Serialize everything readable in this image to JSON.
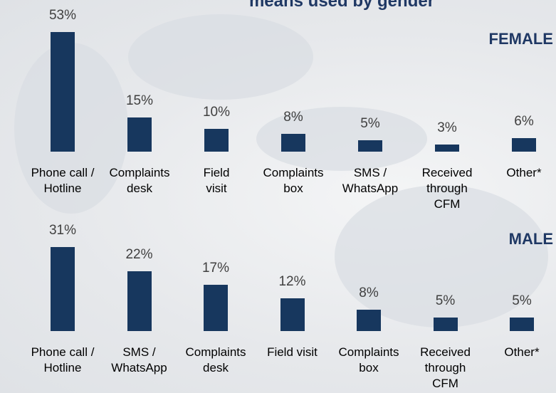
{
  "title": "means used by gender",
  "chart_data": [
    {
      "type": "bar",
      "title": "FEMALE",
      "color": "#17375e",
      "categories": [
        "Phone call /\nHotline",
        "Complaints\ndesk",
        "Field\nvisit",
        "Complaints\nbox",
        "SMS /\nWhatsApp",
        "Received\nthrough\nCFM",
        "Other*"
      ],
      "values": [
        53,
        15,
        10,
        8,
        5,
        3,
        6
      ],
      "value_labels": [
        "53%",
        "15%",
        "10%",
        "8%",
        "5%",
        "3%",
        "6%"
      ]
    },
    {
      "type": "bar",
      "title": "MALE",
      "color": "#17375e",
      "categories": [
        "Phone call /\nHotline",
        "SMS /\nWhatsApp",
        "Complaints\ndesk",
        "Field visit",
        "Complaints\nbox",
        "Received\nthrough\nCFM",
        "Other*"
      ],
      "values": [
        31,
        22,
        17,
        12,
        8,
        5,
        5
      ],
      "value_labels": [
        "31%",
        "22%",
        "17%",
        "12%",
        "8%",
        "5%",
        "5%"
      ]
    }
  ]
}
